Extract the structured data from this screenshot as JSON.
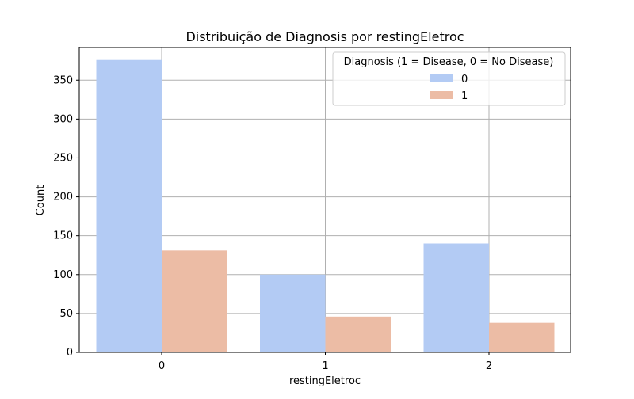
{
  "chart_data": {
    "type": "bar",
    "title": "Distribuição de Diagnosis por restingEletroc",
    "xlabel": "restingEletroc",
    "ylabel": "Count",
    "categories": [
      "0",
      "1",
      "2"
    ],
    "series": [
      {
        "name": "0",
        "values": [
          376,
          100,
          140
        ],
        "color": "#b3cbf4"
      },
      {
        "name": "1",
        "values": [
          131,
          46,
          38
        ],
        "color": "#ecbca5"
      }
    ],
    "ylim": [
      0,
      392
    ],
    "yticks": [
      0,
      50,
      100,
      150,
      200,
      250,
      300,
      350
    ],
    "grid": true,
    "legend": {
      "title": "Diagnosis (1 = Disease, 0 = No Disease)",
      "placement": "top-right"
    }
  }
}
